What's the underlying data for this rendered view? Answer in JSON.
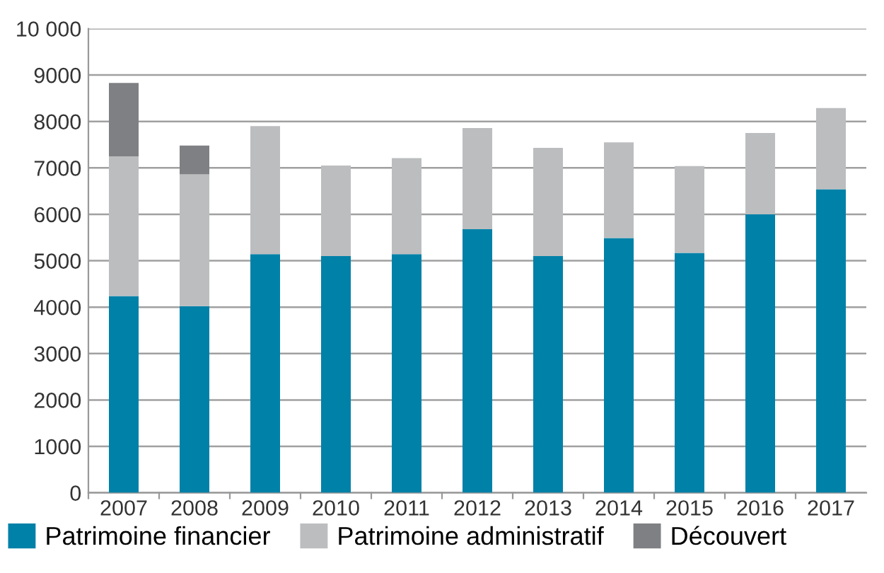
{
  "chart_data": {
    "type": "bar",
    "stacked": true,
    "categories": [
      "2007",
      "2008",
      "2009",
      "2010",
      "2011",
      "2012",
      "2013",
      "2014",
      "2015",
      "2016",
      "2017"
    ],
    "series": [
      {
        "name": "Patrimoine financier",
        "color": "#0081a8",
        "values": [
          4240,
          4020,
          5140,
          5100,
          5140,
          5680,
          5100,
          5490,
          5170,
          6000,
          6540
        ]
      },
      {
        "name": "Patrimoine administratif",
        "color": "#bcbdbf",
        "values": [
          3010,
          2840,
          2760,
          1950,
          2070,
          2180,
          2330,
          2060,
          1870,
          1750,
          1750
        ]
      },
      {
        "name": "Découvert",
        "color": "#7f8083",
        "values": [
          1580,
          620,
          0,
          0,
          0,
          0,
          0,
          0,
          0,
          0,
          0
        ]
      }
    ],
    "ylim": [
      0,
      10000
    ],
    "yticks": [
      0,
      1000,
      2000,
      3000,
      4000,
      5000,
      6000,
      7000,
      8000,
      9000,
      {
        "value": 10000,
        "label": "10 000"
      }
    ],
    "grid": "y",
    "legend": "bottom"
  }
}
